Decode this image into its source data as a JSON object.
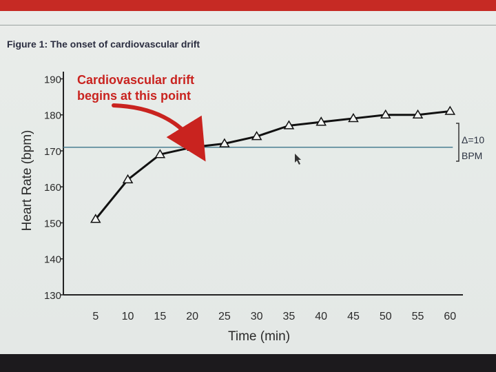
{
  "figure_title": "Figure 1: The onset of cardiovascular drift",
  "chart_data": {
    "type": "line",
    "title": "",
    "xlabel": "Time (min)",
    "ylabel": "Heart Rate (bpm)",
    "xlim": [
      0,
      62
    ],
    "ylim": [
      130,
      192
    ],
    "x_ticks": [
      5,
      10,
      15,
      20,
      25,
      30,
      35,
      40,
      45,
      50,
      55,
      60
    ],
    "y_ticks": [
      130,
      140,
      150,
      160,
      170,
      180,
      190
    ],
    "x": [
      5,
      10,
      15,
      20,
      25,
      30,
      35,
      40,
      45,
      50,
      55,
      60
    ],
    "series": [
      {
        "values": [
          151,
          162,
          169,
          171,
          172,
          174,
          177,
          178,
          179,
          180,
          180,
          181
        ],
        "marker": "triangle"
      }
    ],
    "reference_line": {
      "y": 171,
      "x_start": 0,
      "x_end": 60
    },
    "annotations": {
      "drift_line1": "Cardiovascular drift",
      "drift_line2": "begins at this point",
      "delta_line1": "Δ=10",
      "delta_line2": "BPM"
    },
    "grid": false,
    "colors": {
      "line": "#111111",
      "reference": "#4a7f92",
      "annotation": "#c9231f",
      "axis": "#222222"
    }
  }
}
